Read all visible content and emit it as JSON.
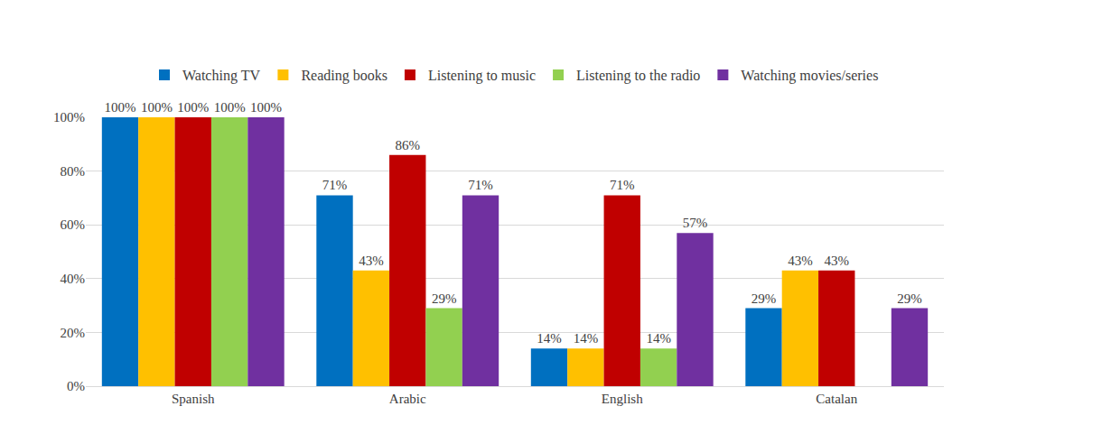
{
  "chart_data": {
    "type": "bar",
    "categories": [
      "Spanish",
      "Arabic",
      "English",
      "Catalan"
    ],
    "series": [
      {
        "name": "Watching TV",
        "color": "#0070C0",
        "values": [
          100,
          71,
          14,
          29
        ],
        "value_labels": [
          "100%",
          "71%",
          "14%",
          "29%"
        ]
      },
      {
        "name": "Reading books",
        "color": "#FFC000",
        "values": [
          100,
          43,
          14,
          43
        ],
        "value_labels": [
          "100%",
          "43%",
          "14%",
          "43%"
        ]
      },
      {
        "name": "Listening to music",
        "color": "#C00000",
        "values": [
          100,
          86,
          71,
          43
        ],
        "value_labels": [
          "100%",
          "86%",
          "71%",
          "43%"
        ]
      },
      {
        "name": "Listening to the radio",
        "color": "#92D050",
        "values": [
          100,
          29,
          14,
          null
        ],
        "value_labels": [
          "100%",
          "29%",
          "14%",
          null
        ]
      },
      {
        "name": "Watching movies/series",
        "color": "#7030A0",
        "values": [
          100,
          71,
          57,
          29
        ],
        "value_labels": [
          "100%",
          "71%",
          "57%",
          "29%"
        ]
      }
    ],
    "ylim": [
      0,
      100
    ],
    "yticks": [
      {
        "value": 0,
        "label": "0%"
      },
      {
        "value": 20,
        "label": "20%"
      },
      {
        "value": 40,
        "label": "40%"
      },
      {
        "value": 60,
        "label": "60%"
      },
      {
        "value": 80,
        "label": "80%"
      },
      {
        "value": 100,
        "label": "100%"
      }
    ],
    "grid": true,
    "legend": "top",
    "data_labels": true
  }
}
